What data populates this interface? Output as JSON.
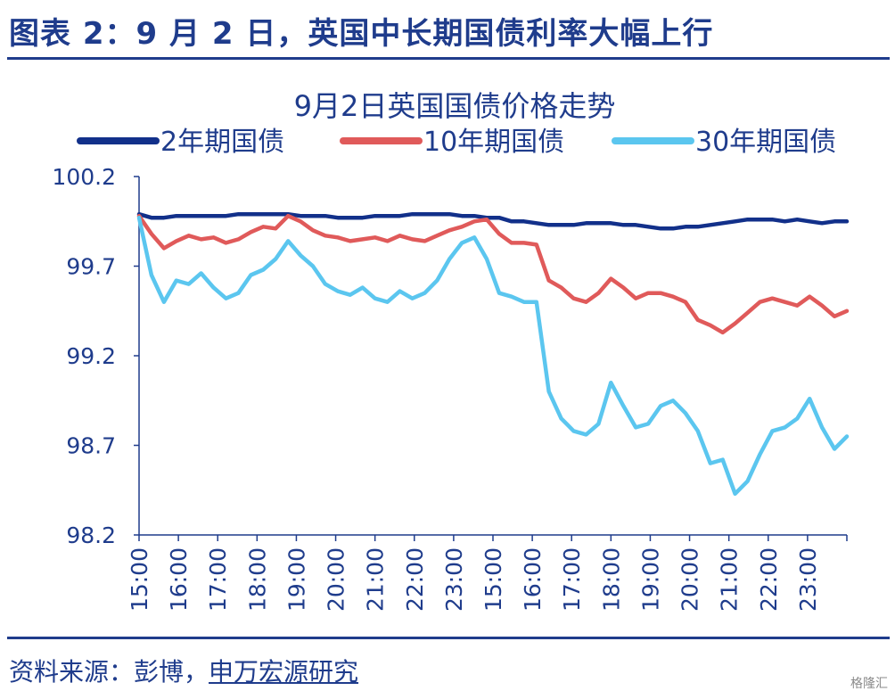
{
  "header": {
    "figure_title": "图表 2：9 月 2 日，英国中长期国债利率大幅上行"
  },
  "footer": {
    "source_prefix": "资料来源：彭博，",
    "source_institution": "申万宏源研究",
    "watermark": "格隆汇"
  },
  "colors": {
    "brand": "#1f3c8c",
    "series_2y": "#12308a",
    "series_10y": "#e05a5a",
    "series_30y": "#5bc6ef",
    "axis": "#1f3c8c"
  },
  "chart_data": {
    "type": "line",
    "title": "9月2日英国国债价格走势",
    "legend_position": "top",
    "grid": false,
    "ylim": [
      98.2,
      100.2
    ],
    "y_ticks": [
      "100.2",
      "99.7",
      "99.2",
      "98.7",
      "98.2"
    ],
    "x_ticks": [
      "15:00",
      "16:00",
      "17:00",
      "18:00",
      "19:00",
      "20:00",
      "21:00",
      "22:00",
      "23:00",
      "15:00",
      "16:00",
      "17:00",
      "18:00",
      "19:00",
      "20:00",
      "21:00",
      "22:00",
      "23:00"
    ],
    "series": [
      {
        "name": "2年期国债",
        "color": "#12308a",
        "values": [
          99.99,
          99.97,
          99.97,
          99.98,
          99.98,
          99.98,
          99.98,
          99.98,
          99.99,
          99.99,
          99.99,
          99.99,
          99.99,
          99.98,
          99.98,
          99.98,
          99.97,
          99.97,
          99.97,
          99.98,
          99.98,
          99.98,
          99.99,
          99.99,
          99.99,
          99.99,
          99.98,
          99.98,
          99.97,
          99.97,
          99.95,
          99.95,
          99.94,
          99.93,
          99.93,
          99.93,
          99.94,
          99.94,
          99.94,
          99.93,
          99.93,
          99.92,
          99.91,
          99.91,
          99.92,
          99.92,
          99.93,
          99.94,
          99.95,
          99.96,
          99.96,
          99.96,
          99.95,
          99.96,
          99.95,
          99.94,
          99.95,
          99.95
        ],
        "start_index": 0
      },
      {
        "name": "10年期国债",
        "color": "#e05a5a",
        "values": [
          99.98,
          99.88,
          99.8,
          99.84,
          99.87,
          99.85,
          99.86,
          99.83,
          99.85,
          99.89,
          99.92,
          99.91,
          99.98,
          99.95,
          99.9,
          99.87,
          99.86,
          99.84,
          99.85,
          99.86,
          99.84,
          99.87,
          99.85,
          99.84,
          99.87,
          99.9,
          99.92,
          99.95,
          99.96,
          99.88,
          99.83,
          99.83,
          99.82,
          99.62,
          99.58,
          99.52,
          99.5,
          99.55,
          99.63,
          99.58,
          99.52,
          99.55,
          99.55,
          99.53,
          99.5,
          99.4,
          99.37,
          99.33,
          99.38,
          99.44,
          99.5,
          99.52,
          99.5,
          99.48,
          99.53,
          99.48,
          99.42,
          99.45
        ],
        "start_index": 0
      },
      {
        "name": "30年期国债",
        "color": "#5bc6ef",
        "values": [
          99.97,
          99.65,
          99.5,
          99.62,
          99.6,
          99.66,
          99.58,
          99.52,
          99.55,
          99.65,
          99.68,
          99.74,
          99.84,
          99.76,
          99.7,
          99.6,
          99.56,
          99.54,
          99.58,
          99.52,
          99.5,
          99.56,
          99.52,
          99.55,
          99.62,
          99.74,
          99.83,
          99.86,
          99.74,
          99.55,
          99.53,
          99.5,
          99.5,
          99.0,
          98.85,
          98.78,
          98.76,
          98.82,
          99.05,
          98.92,
          98.8,
          98.82,
          98.92,
          98.95,
          98.88,
          98.78,
          98.6,
          98.62,
          98.43,
          98.5,
          98.65,
          98.78,
          98.8,
          98.85,
          98.96,
          98.8,
          98.68,
          98.75
        ],
        "start_index": 0
      }
    ]
  }
}
